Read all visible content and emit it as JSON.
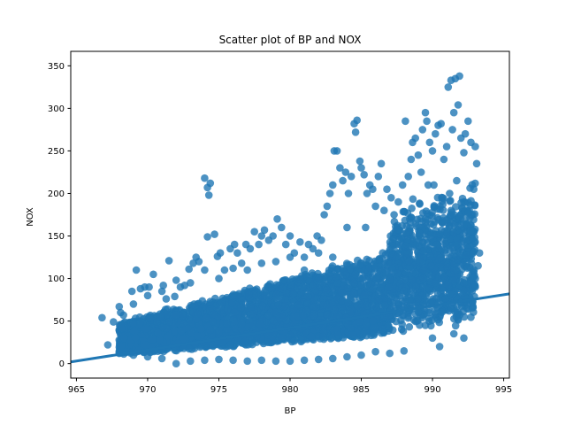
{
  "chart_data": {
    "type": "scatter",
    "title": "Scatter plot of BP and NOX",
    "xlabel": "BP",
    "ylabel": "NOX",
    "xlim": [
      964.6,
      995.4
    ],
    "ylim": [
      -17,
      367
    ],
    "xticks": [
      965,
      970,
      975,
      980,
      985,
      990,
      995
    ],
    "yticks": [
      0,
      50,
      100,
      150,
      200,
      250,
      300,
      350
    ],
    "point_color": "#1f77b4",
    "grid": false,
    "series": [
      {
        "points": [
          [
            966.8,
            54
          ],
          [
            967.2,
            22
          ],
          [
            967.6,
            49
          ],
          [
            968.0,
            67
          ],
          [
            968.1,
            60
          ],
          [
            968.3,
            57
          ],
          [
            968.5,
            44
          ],
          [
            968.9,
            85
          ],
          [
            969.2,
            110
          ],
          [
            969.5,
            88
          ],
          [
            969.8,
            90
          ],
          [
            970.1,
            90
          ],
          [
            970.4,
            105
          ],
          [
            970.7,
            56
          ],
          [
            971.1,
            92
          ],
          [
            971.3,
            76
          ],
          [
            971.5,
            121
          ],
          [
            971.9,
            79
          ],
          [
            972.3,
            90
          ],
          [
            972.6,
            92
          ],
          [
            972.9,
            111
          ],
          [
            973.2,
            118
          ],
          [
            973.4,
            125
          ],
          [
            973.6,
            120
          ],
          [
            974.0,
            218
          ],
          [
            974.2,
            207
          ],
          [
            974.3,
            198
          ],
          [
            974.4,
            212
          ],
          [
            974.2,
            149
          ],
          [
            974.7,
            152
          ],
          [
            974.9,
            126
          ],
          [
            975.1,
            130
          ],
          [
            975.4,
            110
          ],
          [
            975.8,
            135
          ],
          [
            976.1,
            140
          ],
          [
            976.3,
            130
          ],
          [
            976.6,
            118
          ],
          [
            976.9,
            140
          ],
          [
            977.2,
            135
          ],
          [
            977.5,
            155
          ],
          [
            977.8,
            140
          ],
          [
            978.0,
            150
          ],
          [
            978.2,
            157
          ],
          [
            978.5,
            145
          ],
          [
            978.8,
            150
          ],
          [
            979.1,
            170
          ],
          [
            979.4,
            160
          ],
          [
            979.7,
            140
          ],
          [
            980.0,
            150
          ],
          [
            980.3,
            130
          ],
          [
            980.7,
            143
          ],
          [
            981.0,
            125
          ],
          [
            981.3,
            140
          ],
          [
            981.6,
            135
          ],
          [
            981.9,
            150
          ],
          [
            982.2,
            145
          ],
          [
            982.4,
            175
          ],
          [
            982.6,
            185
          ],
          [
            982.8,
            200
          ],
          [
            983.0,
            210
          ],
          [
            983.1,
            250
          ],
          [
            983.3,
            250
          ],
          [
            983.5,
            230
          ],
          [
            983.7,
            215
          ],
          [
            983.9,
            225
          ],
          [
            984.1,
            200
          ],
          [
            984.3,
            220
          ],
          [
            984.5,
            282
          ],
          [
            984.6,
            272
          ],
          [
            984.7,
            286
          ],
          [
            984.9,
            238
          ],
          [
            985.0,
            230
          ],
          [
            985.2,
            222
          ],
          [
            985.4,
            200
          ],
          [
            985.6,
            210
          ],
          [
            985.8,
            205
          ],
          [
            986.0,
            185
          ],
          [
            986.2,
            220
          ],
          [
            986.4,
            235
          ],
          [
            986.6,
            180
          ],
          [
            986.8,
            205
          ],
          [
            987.1,
            195
          ],
          [
            987.3,
            175
          ],
          [
            987.6,
            190
          ],
          [
            987.9,
            210
          ],
          [
            988.1,
            285
          ],
          [
            988.3,
            220
          ],
          [
            988.5,
            240
          ],
          [
            988.6,
            260
          ],
          [
            988.8,
            265
          ],
          [
            989.0,
            245
          ],
          [
            989.2,
            225
          ],
          [
            989.3,
            275
          ],
          [
            989.5,
            295
          ],
          [
            989.6,
            285
          ],
          [
            989.8,
            260
          ],
          [
            990.0,
            250
          ],
          [
            990.2,
            270
          ],
          [
            990.4,
            280
          ],
          [
            990.6,
            282
          ],
          [
            990.8,
            240
          ],
          [
            991.0,
            255
          ],
          [
            991.1,
            325
          ],
          [
            991.3,
            333
          ],
          [
            991.4,
            275
          ],
          [
            991.5,
            295
          ],
          [
            991.6,
            335
          ],
          [
            991.8,
            304
          ],
          [
            991.9,
            338
          ],
          [
            992.0,
            265
          ],
          [
            992.2,
            248
          ],
          [
            992.3,
            270
          ],
          [
            992.5,
            285
          ],
          [
            992.7,
            260
          ],
          [
            992.9,
            205
          ],
          [
            993.0,
            255
          ],
          [
            993.1,
            235
          ],
          [
            993.2,
            115
          ],
          [
            993.3,
            130
          ],
          [
            993.0,
            100
          ],
          [
            992.8,
            140
          ],
          [
            992.6,
            160
          ],
          [
            992.4,
            140
          ],
          [
            992.2,
            190
          ],
          [
            991.7,
            215
          ],
          [
            991.2,
            200
          ],
          [
            990.7,
            195
          ],
          [
            990.1,
            210
          ],
          [
            989.7,
            210
          ],
          [
            989.1,
            160
          ],
          [
            988.4,
            170
          ],
          [
            987.5,
            150
          ],
          [
            986.5,
            130
          ],
          [
            985.3,
            160
          ],
          [
            984.0,
            160
          ],
          [
            983.0,
            125
          ],
          [
            982.0,
            130
          ],
          [
            981.0,
            110
          ],
          [
            980.0,
            125
          ],
          [
            979.0,
            120
          ],
          [
            978.0,
            118
          ],
          [
            977.0,
            110
          ],
          [
            976.0,
            112
          ],
          [
            975.0,
            100
          ],
          [
            974.0,
            110
          ],
          [
            973.0,
            95
          ],
          [
            972.0,
            98
          ],
          [
            971.0,
            85
          ],
          [
            970.0,
            80
          ],
          [
            969.0,
            70
          ],
          [
            992.2,
            30
          ],
          [
            991.5,
            35
          ],
          [
            991.8,
            60
          ],
          [
            992.5,
            75
          ],
          [
            993.0,
            90
          ],
          [
            990.5,
            20
          ],
          [
            990.0,
            30
          ],
          [
            989.5,
            45
          ],
          [
            988.9,
            50
          ],
          [
            988.0,
            15
          ],
          [
            987.0,
            12
          ],
          [
            986.0,
            14
          ],
          [
            985.0,
            10
          ],
          [
            984.0,
            8
          ],
          [
            983.0,
            6
          ],
          [
            982.0,
            5
          ],
          [
            981.0,
            4
          ],
          [
            980.0,
            3
          ],
          [
            979.0,
            3
          ],
          [
            978.0,
            4
          ],
          [
            977.0,
            3
          ],
          [
            976.0,
            4
          ],
          [
            975.0,
            5
          ],
          [
            974.0,
            4
          ],
          [
            973.0,
            3
          ],
          [
            972.0,
            0
          ],
          [
            971.0,
            6
          ],
          [
            970.0,
            8
          ],
          [
            969.0,
            10
          ],
          [
            968.0,
            12
          ]
        ]
      }
    ],
    "regression_line": {
      "x": [
        964.6,
        995.4
      ],
      "y": [
        2,
        82
      ],
      "color": "#1f77b4"
    }
  }
}
